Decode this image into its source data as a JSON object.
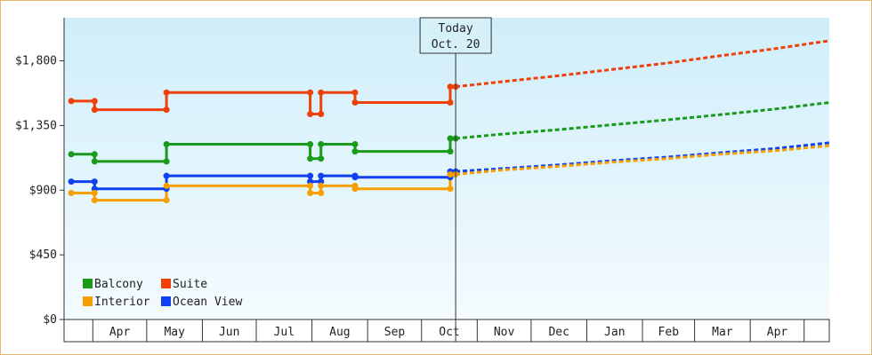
{
  "chart_data": {
    "type": "line",
    "today": {
      "line1": "Today",
      "line2": "Oct. 20",
      "x": "2023-10-20"
    },
    "y_ticks": [
      "$0",
      "$450",
      "$900",
      "$1,350",
      "$1,800"
    ],
    "y_tick_values": [
      0,
      450,
      900,
      1350,
      1800
    ],
    "ylim": [
      0,
      2100
    ],
    "x_ticks": [
      "Apr",
      "May",
      "Jun",
      "Jul",
      "Aug",
      "Sep",
      "Oct",
      "Nov",
      "Dec",
      "Jan",
      "Feb",
      "Mar",
      "Apr"
    ],
    "xlim": [
      "2023-03-16",
      "2024-05-15"
    ],
    "grid": false,
    "legend_position": "bottom-left",
    "colors": {
      "Balcony": "#1a9a1a",
      "Suite": "#f0400a",
      "Interior": "#f5a000",
      "Ocean View": "#1040f0"
    },
    "legend_order": [
      "Balcony",
      "Suite",
      "Interior",
      "Ocean View"
    ],
    "series": [
      {
        "name": "Suite",
        "history": [
          [
            "2023-03-20",
            1520
          ],
          [
            "2023-04-02",
            1520
          ],
          [
            "2023-04-02",
            1460
          ],
          [
            "2023-05-12",
            1460
          ],
          [
            "2023-05-12",
            1580
          ],
          [
            "2023-07-31",
            1580
          ],
          [
            "2023-07-31",
            1430
          ],
          [
            "2023-08-06",
            1430
          ],
          [
            "2023-08-06",
            1580
          ],
          [
            "2023-08-25",
            1580
          ],
          [
            "2023-08-25",
            1510
          ],
          [
            "2023-10-17",
            1510
          ],
          [
            "2023-10-17",
            1620
          ],
          [
            "2023-10-20",
            1620
          ]
        ],
        "forecast": [
          [
            "2023-10-20",
            1620
          ],
          [
            "2023-11-15",
            1655
          ],
          [
            "2023-12-15",
            1695
          ],
          [
            "2024-01-15",
            1740
          ],
          [
            "2024-02-15",
            1785
          ],
          [
            "2024-03-15",
            1835
          ],
          [
            "2024-04-15",
            1885
          ],
          [
            "2024-05-15",
            1940
          ]
        ]
      },
      {
        "name": "Balcony",
        "history": [
          [
            "2023-03-20",
            1150
          ],
          [
            "2023-04-02",
            1150
          ],
          [
            "2023-04-02",
            1100
          ],
          [
            "2023-05-12",
            1100
          ],
          [
            "2023-05-12",
            1220
          ],
          [
            "2023-07-31",
            1220
          ],
          [
            "2023-07-31",
            1120
          ],
          [
            "2023-08-06",
            1120
          ],
          [
            "2023-08-06",
            1220
          ],
          [
            "2023-08-25",
            1220
          ],
          [
            "2023-08-25",
            1170
          ],
          [
            "2023-10-17",
            1170
          ],
          [
            "2023-10-17",
            1260
          ],
          [
            "2023-10-20",
            1260
          ]
        ],
        "forecast": [
          [
            "2023-10-20",
            1260
          ],
          [
            "2023-11-15",
            1290
          ],
          [
            "2023-12-15",
            1320
          ],
          [
            "2024-01-15",
            1355
          ],
          [
            "2024-02-15",
            1390
          ],
          [
            "2024-03-15",
            1425
          ],
          [
            "2024-04-15",
            1465
          ],
          [
            "2024-05-15",
            1510
          ]
        ]
      },
      {
        "name": "Ocean View",
        "history": [
          [
            "2023-03-20",
            960
          ],
          [
            "2023-04-02",
            960
          ],
          [
            "2023-04-02",
            910
          ],
          [
            "2023-05-12",
            910
          ],
          [
            "2023-05-12",
            1000
          ],
          [
            "2023-07-31",
            1000
          ],
          [
            "2023-07-31",
            960
          ],
          [
            "2023-08-06",
            960
          ],
          [
            "2023-08-06",
            1000
          ],
          [
            "2023-08-25",
            1000
          ],
          [
            "2023-08-25",
            990
          ],
          [
            "2023-10-17",
            990
          ],
          [
            "2023-10-17",
            1030
          ],
          [
            "2023-10-20",
            1030
          ]
        ],
        "forecast": [
          [
            "2023-10-20",
            1030
          ],
          [
            "2023-11-15",
            1050
          ],
          [
            "2023-12-15",
            1075
          ],
          [
            "2024-01-15",
            1105
          ],
          [
            "2024-02-15",
            1130
          ],
          [
            "2024-03-15",
            1160
          ],
          [
            "2024-04-15",
            1190
          ],
          [
            "2024-05-15",
            1230
          ]
        ]
      },
      {
        "name": "Interior",
        "history": [
          [
            "2023-03-20",
            880
          ],
          [
            "2023-04-02",
            880
          ],
          [
            "2023-04-02",
            830
          ],
          [
            "2023-05-12",
            830
          ],
          [
            "2023-05-12",
            930
          ],
          [
            "2023-07-31",
            930
          ],
          [
            "2023-07-31",
            880
          ],
          [
            "2023-08-06",
            880
          ],
          [
            "2023-08-06",
            930
          ],
          [
            "2023-08-25",
            930
          ],
          [
            "2023-08-25",
            910
          ],
          [
            "2023-10-17",
            910
          ],
          [
            "2023-10-17",
            1010
          ],
          [
            "2023-10-20",
            1010
          ]
        ],
        "forecast": [
          [
            "2023-10-20",
            1010
          ],
          [
            "2023-11-15",
            1040
          ],
          [
            "2023-12-15",
            1065
          ],
          [
            "2024-01-15",
            1095
          ],
          [
            "2024-02-15",
            1120
          ],
          [
            "2024-03-15",
            1150
          ],
          [
            "2024-04-15",
            1175
          ],
          [
            "2024-05-15",
            1210
          ]
        ]
      }
    ]
  }
}
